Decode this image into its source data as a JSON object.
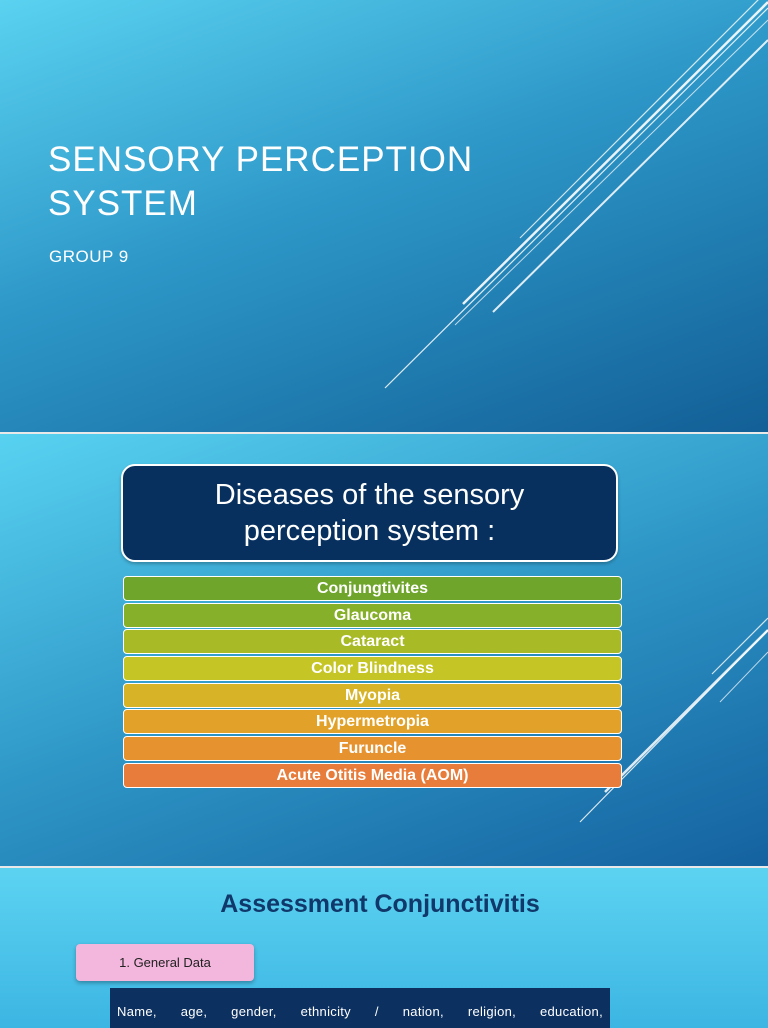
{
  "slide1": {
    "title_line1": "Sensory Perception",
    "title_line2": "System",
    "subtitle": "GROUP 9"
  },
  "slide2": {
    "header": "Diseases of the sensory perception system :",
    "items": [
      {
        "label": "Conjungtivites",
        "color": "#6ea52a"
      },
      {
        "label": "Glaucoma",
        "color": "#87b02a"
      },
      {
        "label": "Cataract",
        "color": "#a8bb26"
      },
      {
        "label": "Color Blindness",
        "color": "#c5c526"
      },
      {
        "label": "Myopia",
        "color": "#d7b328"
      },
      {
        "label": "Hypermetropia",
        "color": "#e2a22a"
      },
      {
        "label": "Furuncle",
        "color": "#e6922f"
      },
      {
        "label": "Acute Otitis Media (AOM)",
        "color": "#e87c3a"
      }
    ]
  },
  "slide3": {
    "title": "Assessment Conjunctivitis",
    "tab_label": "1. General Data",
    "data_text": "Name, age, gender, ethnicity / nation, religion, education,"
  }
}
